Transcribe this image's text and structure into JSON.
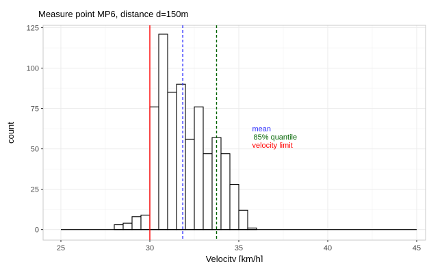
{
  "chart_data": {
    "type": "bar",
    "title": "Measure point MP6, distance d=150m",
    "xlabel": "Velocity [km/h]",
    "ylabel": "count",
    "xlim": [
      24,
      45.5
    ],
    "ylim": [
      -6.5,
      126.5
    ],
    "x_ticks": [
      25,
      30,
      35,
      40,
      45
    ],
    "y_ticks": [
      0,
      25,
      50,
      75,
      100,
      125
    ],
    "grid": true,
    "bin_width": 0.5,
    "bins": [
      {
        "x0": 25.0,
        "count": 0
      },
      {
        "x0": 25.5,
        "count": 0
      },
      {
        "x0": 26.0,
        "count": 0
      },
      {
        "x0": 26.5,
        "count": 0
      },
      {
        "x0": 27.0,
        "count": 0
      },
      {
        "x0": 27.5,
        "count": 0
      },
      {
        "x0": 28.0,
        "count": 3
      },
      {
        "x0": 28.5,
        "count": 4
      },
      {
        "x0": 29.0,
        "count": 8
      },
      {
        "x0": 29.5,
        "count": 9
      },
      {
        "x0": 30.0,
        "count": 76
      },
      {
        "x0": 30.5,
        "count": 121
      },
      {
        "x0": 31.0,
        "count": 85
      },
      {
        "x0": 31.5,
        "count": 90
      },
      {
        "x0": 32.0,
        "count": 56
      },
      {
        "x0": 32.5,
        "count": 76
      },
      {
        "x0": 33.0,
        "count": 47
      },
      {
        "x0": 33.5,
        "count": 57
      },
      {
        "x0": 34.0,
        "count": 47
      },
      {
        "x0": 34.5,
        "count": 28
      },
      {
        "x0": 35.0,
        "count": 12
      },
      {
        "x0": 35.5,
        "count": 1
      },
      {
        "x0": 36.0,
        "count": 0
      },
      {
        "x0": 36.5,
        "count": 0
      },
      {
        "x0": 37.0,
        "count": 0
      },
      {
        "x0": 37.5,
        "count": 0
      },
      {
        "x0": 38.0,
        "count": 0
      },
      {
        "x0": 38.5,
        "count": 0
      },
      {
        "x0": 39.0,
        "count": 0
      },
      {
        "x0": 39.5,
        "count": 0
      },
      {
        "x0": 40.0,
        "count": 0
      },
      {
        "x0": 40.5,
        "count": 0
      },
      {
        "x0": 41.0,
        "count": 0
      },
      {
        "x0": 41.5,
        "count": 0
      },
      {
        "x0": 42.0,
        "count": 0
      },
      {
        "x0": 42.5,
        "count": 0
      },
      {
        "x0": 43.0,
        "count": 0
      },
      {
        "x0": 43.5,
        "count": 0
      },
      {
        "x0": 44.0,
        "count": 0
      },
      {
        "x0": 44.5,
        "count": 0
      }
    ],
    "reference_lines": [
      {
        "label": "mean",
        "x": 31.85,
        "color": "#3333ff",
        "style": "dashed"
      },
      {
        "label": "85% quantile",
        "x": 33.75,
        "color": "#006400",
        "style": "dashed"
      },
      {
        "label": "velocity limit",
        "x": 30,
        "color": "#ff0000",
        "style": "solid"
      }
    ]
  }
}
